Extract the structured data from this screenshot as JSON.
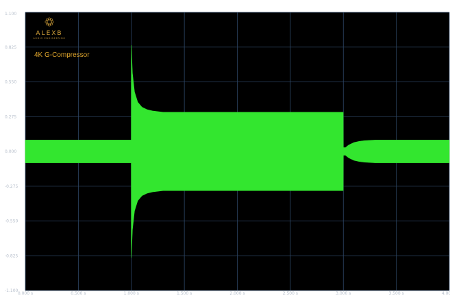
{
  "brand": {
    "name": "ALEXB",
    "subtitle": "AUDIO ENGINEERING",
    "plugin_title": "4K G-Compressor",
    "logo_icon": "mandala-logo-icon"
  },
  "colors": {
    "background": "#000000",
    "frame": "#ffffff",
    "grid": "#2f4868",
    "zero_grid": "#41607f",
    "waveform": "#33e62f",
    "brand": "#d4a23a"
  },
  "chart_data": {
    "type": "area",
    "title": "",
    "xlabel": "",
    "ylabel": "",
    "xlim": [
      0,
      4
    ],
    "ylim": [
      -1.1,
      1.1
    ],
    "grid": true,
    "legend": "none",
    "x_ticks": [
      0,
      0.5,
      1,
      1.5,
      2,
      2.5,
      3,
      3.5,
      4
    ],
    "x_tick_labels": [
      "0.000 s",
      "0.500 s",
      "1.000 s",
      "1.500 s",
      "2.000 s",
      "2.500 s",
      "3.000 s",
      "3.500 s",
      "4.000 s"
    ],
    "y_ticks": [
      1.1,
      0.825,
      0.55,
      0.275,
      0,
      -0.275,
      -0.55,
      -0.825,
      -1.1
    ],
    "y_tick_labels": [
      "1.100",
      "0.825",
      "0.550",
      "0.275",
      "0.000",
      "-0.275",
      "-0.550",
      "-0.825",
      "-1.100"
    ],
    "series": [
      {
        "description": "waveform envelope (symmetric around 0)",
        "x": [
          0.0,
          0.999,
          1.0,
          1.01,
          1.03,
          1.06,
          1.1,
          1.15,
          1.2,
          1.3,
          1.5,
          2.0,
          2.999,
          3.0,
          3.02,
          3.05,
          3.1,
          3.15,
          3.2,
          3.3,
          3.5,
          4.0
        ],
        "upper": [
          0.09,
          0.09,
          0.84,
          0.62,
          0.47,
          0.39,
          0.35,
          0.33,
          0.32,
          0.31,
          0.31,
          0.31,
          0.31,
          0.03,
          0.03,
          0.05,
          0.07,
          0.08,
          0.085,
          0.09,
          0.09,
          0.09
        ],
        "lower": [
          -0.09,
          -0.09,
          -0.84,
          -0.62,
          -0.47,
          -0.39,
          -0.35,
          -0.33,
          -0.32,
          -0.31,
          -0.31,
          -0.31,
          -0.31,
          -0.03,
          -0.03,
          -0.05,
          -0.07,
          -0.08,
          -0.085,
          -0.09,
          -0.09,
          -0.09
        ]
      }
    ]
  }
}
